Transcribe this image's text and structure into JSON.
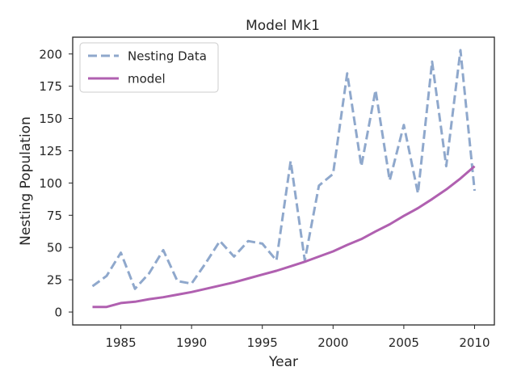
{
  "chart_data": {
    "type": "line",
    "title": "Model Mk1",
    "xlabel": "Year",
    "ylabel": "Nesting Population",
    "xlim": [
      1981.6,
      2011.4
    ],
    "ylim": [
      -10,
      213
    ],
    "xticks": [
      1985,
      1990,
      1995,
      2000,
      2005,
      2010
    ],
    "yticks": [
      0,
      25,
      50,
      75,
      100,
      125,
      150,
      175,
      200
    ],
    "grid": false,
    "legend_position": "top-left",
    "series": [
      {
        "name": "Nesting Data",
        "style": "dashed",
        "color": "#8fa8cc",
        "x": [
          1983,
          1984,
          1985,
          1986,
          1987,
          1988,
          1989,
          1990,
          1991,
          1992,
          1993,
          1994,
          1995,
          1996,
          1997,
          1998,
          1999,
          2000,
          2001,
          2002,
          2003,
          2004,
          2005,
          2006,
          2007,
          2008,
          2009,
          2010
        ],
        "y": [
          20,
          28,
          46,
          18,
          30,
          48,
          24,
          22,
          38,
          55,
          43,
          55,
          53,
          40,
          117,
          40,
          98,
          107,
          185,
          113,
          172,
          102,
          145,
          92,
          194,
          113,
          203,
          94
        ]
      },
      {
        "name": "model",
        "style": "solid",
        "color": "#b060b0",
        "x": [
          1983,
          1984,
          1985,
          1986,
          1987,
          1988,
          1989,
          1990,
          1991,
          1992,
          1993,
          1994,
          1995,
          1996,
          1997,
          1998,
          1999,
          2000,
          2001,
          2002,
          2003,
          2004,
          2005,
          2006,
          2007,
          2008,
          2009,
          2010
        ],
        "y": [
          4,
          4,
          7,
          8,
          10,
          11.5,
          13.5,
          15.5,
          18,
          20.5,
          23,
          26,
          29,
          32,
          35.5,
          39,
          43,
          47,
          52,
          56.5,
          62.5,
          68,
          74.5,
          80.5,
          87.5,
          95,
          103.5,
          113
        ]
      }
    ]
  }
}
